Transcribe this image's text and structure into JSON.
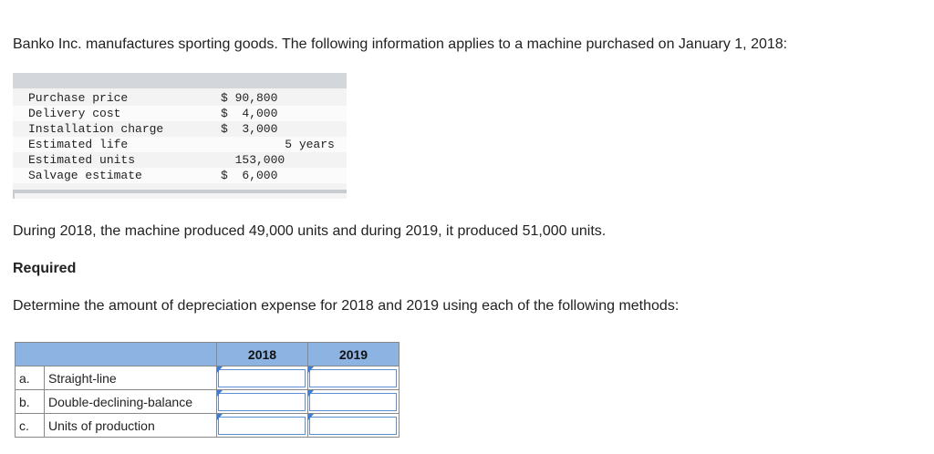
{
  "intro": "Banko Inc. manufactures sporting goods. The following information applies to a machine purchased on January 1, 2018:",
  "info": [
    {
      "label": "Purchase price",
      "value": "$ 90,800"
    },
    {
      "label": "Delivery cost",
      "value": "$  4,000"
    },
    {
      "label": "Installation charge",
      "value": "$  3,000"
    },
    {
      "label": "Estimated life",
      "value": "         5 years"
    },
    {
      "label": "Estimated units",
      "value": "  153,000"
    },
    {
      "label": "Salvage estimate",
      "value": "$  6,000"
    }
  ],
  "during": "During 2018, the machine produced 49,000 units and during 2019, it produced 51,000 units.",
  "required": "Required",
  "determine": "Determine the amount of depreciation expense for 2018 and 2019 using each of the following methods:",
  "table": {
    "headers": [
      "2018",
      "2019"
    ],
    "rows": [
      {
        "letter": "a.",
        "method": "Straight-line",
        "v2018": "",
        "v2019": ""
      },
      {
        "letter": "b.",
        "method": "Double-declining-balance",
        "v2018": "",
        "v2019": ""
      },
      {
        "letter": "c.",
        "method": "Units of production",
        "v2018": "",
        "v2019": ""
      }
    ]
  },
  "colors": {
    "header_bg": "#8db3e2",
    "input_border": "#5b8fd1",
    "info_bg": "#f3f3f3"
  }
}
